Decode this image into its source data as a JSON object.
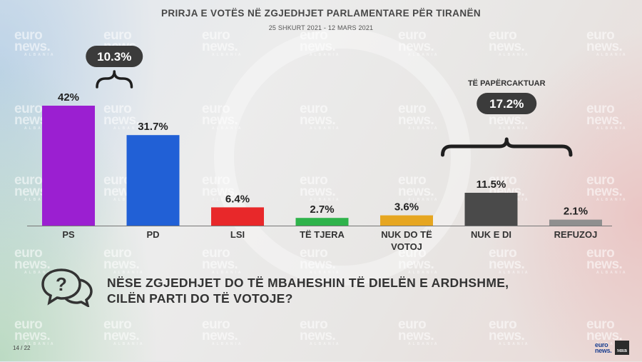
{
  "header": {
    "title": "PRIRJA E VOTËS NË ZGJEDHJET PARLAMENTARE PËR TIRANËN",
    "subtitle": "25 SHKURT 2021 - 12 MARS 2021"
  },
  "chart_data": {
    "type": "bar",
    "categories": [
      "PS",
      "PD",
      "LSI",
      "TË TJERA",
      "NUK DO TË VOTOJ",
      "NUK E DI",
      "REFUZOJ"
    ],
    "values": [
      42,
      31.7,
      6.4,
      2.7,
      3.6,
      11.5,
      2.1
    ],
    "value_labels": [
      "42%",
      "31.7%",
      "6.4%",
      "2.7%",
      "3.6%",
      "11.5%",
      "2.1%"
    ],
    "colors": [
      "#9b1fd1",
      "#2160d6",
      "#e8282a",
      "#2fb34b",
      "#e6a620",
      "#4a4a4a",
      "#8f8f8f"
    ],
    "ylim": [
      0,
      45
    ],
    "annotations": [
      {
        "label": "10.3%",
        "spans": [
          "PS",
          "PD"
        ],
        "title": ""
      },
      {
        "label": "17.2%",
        "spans": [
          "NUK E DI",
          "REFUZOJ"
        ],
        "title": "TË PAPËRCAKTUAR"
      }
    ]
  },
  "question": {
    "line1": "NËSE ZGJEDHJET DO TË MBAHESHIN TË DIELËN E ARDHSHME,",
    "line2": "CILËN PARTI DO TË VOTOJE?"
  },
  "footer": {
    "page": "14 / 22",
    "logo_text": "euro news.",
    "brand_text": "MRB"
  },
  "watermark": {
    "line1": "euro",
    "line2": "news.",
    "line3": "ALBANIA"
  }
}
